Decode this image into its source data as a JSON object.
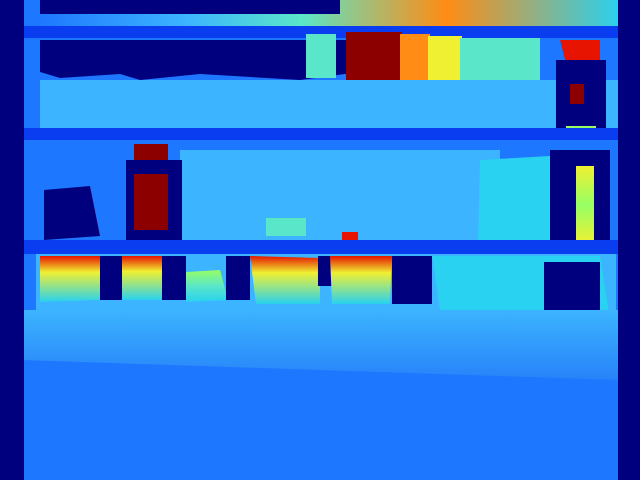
{
  "image": {
    "kind": "depth-map",
    "colormap": "jet",
    "colors": {
      "invalid": "#00007f",
      "near": "#0a3cf0",
      "mid_blue": "#1e78ff",
      "light_blue": "#3cb4ff",
      "cyan": "#28d2f0",
      "aqua": "#5ae6c8",
      "green": "#96ff64",
      "yellow": "#f0f032",
      "orange": "#ff8c14",
      "red": "#e61400",
      "dark_red": "#8c0000"
    }
  }
}
